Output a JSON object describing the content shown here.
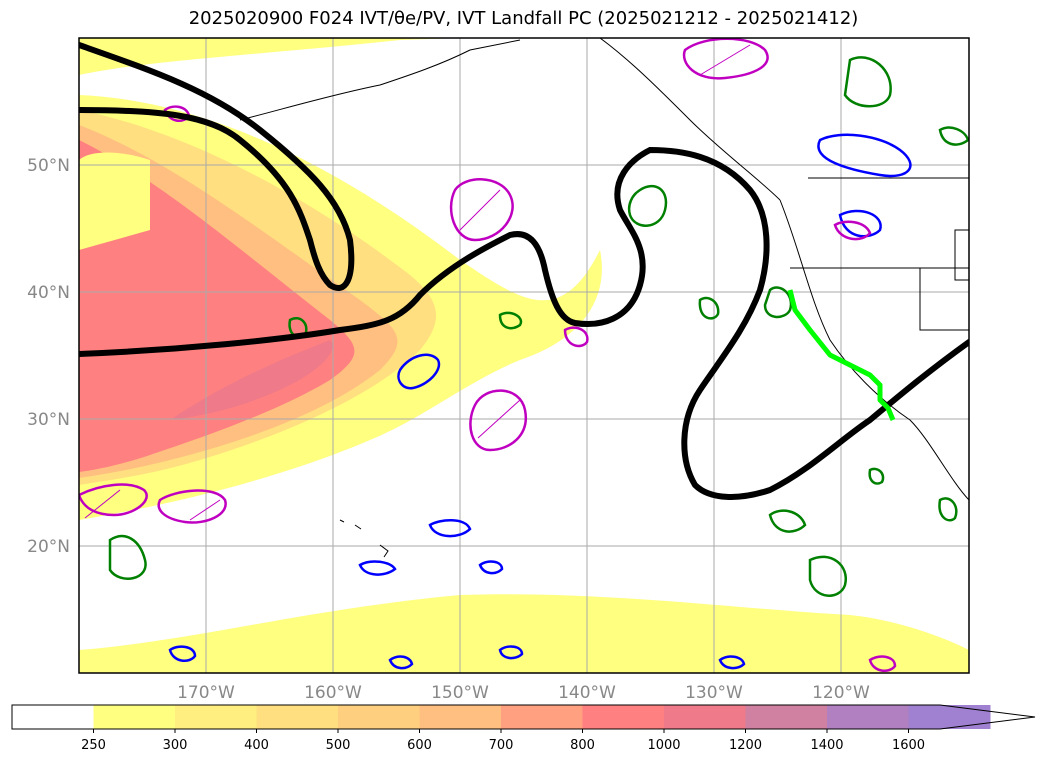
{
  "title": "2025020900 F024 IVT/θe/PV, IVT Landfall PC (2025021212 - 2025021412)",
  "map": {
    "lat_labels": [
      "50°N",
      "40°N",
      "30°N",
      "20°N"
    ],
    "lon_labels": [
      "170°W",
      "160°W",
      "150°W",
      "140°W",
      "130°W",
      "120°W"
    ],
    "lat_range": [
      10,
      60
    ],
    "lon_range": [
      -180,
      -110
    ],
    "gridlines": true
  },
  "colorbar": {
    "levels": [
      "250",
      "300",
      "400",
      "500",
      "600",
      "700",
      "800",
      "1000",
      "1200",
      "1400",
      "1600"
    ],
    "colors": [
      "#ffffff",
      "#ffff80",
      "#ffef80",
      "#ffdf80",
      "#ffcf80",
      "#ffbf80",
      "#ffa080",
      "#ff8080",
      "#ee7a8a",
      "#d080a0",
      "#b080c0",
      "#a080d0"
    ],
    "extend": "max"
  },
  "colors": {
    "contour_black": "#000000",
    "theta_green": "#008000",
    "pv_blue": "#0000ff",
    "pv_magenta": "#c000c0",
    "landfall_line": "#00ff00"
  }
}
